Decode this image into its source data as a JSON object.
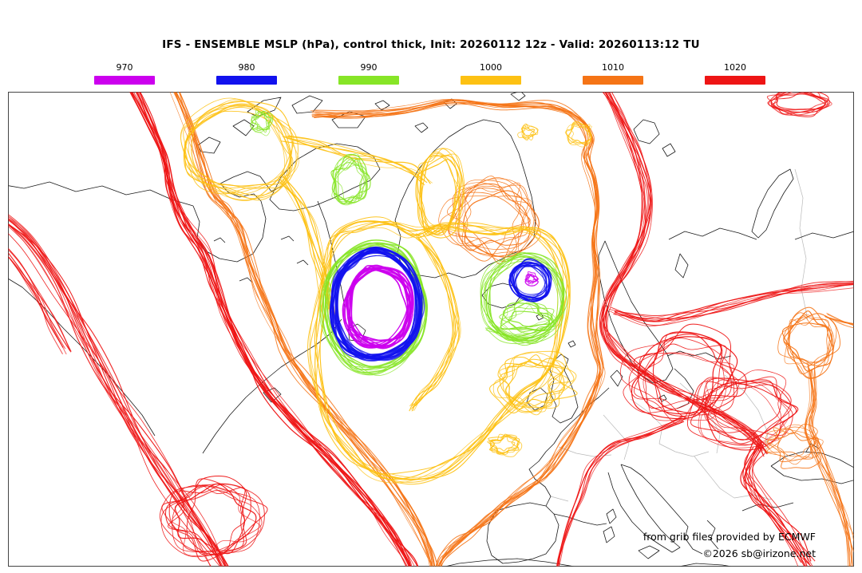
{
  "title": "IFS - ENSEMBLE MSLP (hPa), control thick, Init: 20260112 12z - Valid: 20260113:12 TU",
  "legend": {
    "items": [
      {
        "label": "970",
        "color": "#cc00ee"
      },
      {
        "label": "980",
        "color": "#1212ee"
      },
      {
        "label": "990",
        "color": "#87e527"
      },
      {
        "label": "1000",
        "color": "#fdc113"
      },
      {
        "label": "1010",
        "color": "#f57416"
      },
      {
        "label": "1020",
        "color": "#ee1515"
      }
    ]
  },
  "credits": {
    "line1": "from grib files provided by ECMWF",
    "line2": "©2026 sb@irizone.net"
  },
  "map": {
    "background": "#ffffff",
    "frame_color": "#444444",
    "coastline_color": "#1b1b1b",
    "country_border_color": "#b9b9b9"
  }
}
